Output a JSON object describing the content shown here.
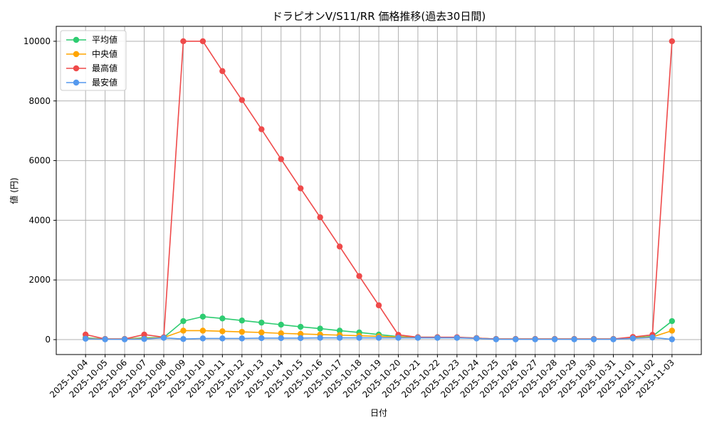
{
  "chart_data": {
    "type": "line",
    "title": "ドラピオンV/S11/RR 価格推移(過去30日間)",
    "x_label": "日付",
    "y_label": "値 (円)",
    "categories": [
      "2025-10-04",
      "2025-10-05",
      "2025-10-06",
      "2025-10-07",
      "2025-10-08",
      "2025-10-09",
      "2025-10-10",
      "2025-10-11",
      "2025-10-12",
      "2025-10-13",
      "2025-10-14",
      "2025-10-15",
      "2025-10-16",
      "2025-10-17",
      "2025-10-18",
      "2025-10-19",
      "2025-10-20",
      "2025-10-21",
      "2025-10-22",
      "2025-10-23",
      "2025-10-24",
      "2025-10-25",
      "2025-10-26",
      "2025-10-27",
      "2025-10-28",
      "2025-10-29",
      "2025-10-30",
      "2025-10-31",
      "2025-11-01",
      "2025-11-02",
      "2025-11-03"
    ],
    "series": [
      {
        "name": "平均値",
        "color": "#2ecc71",
        "values": [
          60,
          20,
          20,
          60,
          70,
          620,
          770,
          710,
          640,
          570,
          500,
          430,
          370,
          300,
          240,
          170,
          100,
          80,
          80,
          70,
          50,
          20,
          20,
          20,
          20,
          20,
          20,
          20,
          60,
          110,
          620
        ]
      },
      {
        "name": "中央値",
        "color": "#ffa500",
        "values": [
          40,
          20,
          20,
          40,
          70,
          300,
          300,
          280,
          260,
          240,
          210,
          190,
          170,
          150,
          130,
          110,
          90,
          70,
          70,
          70,
          50,
          20,
          20,
          20,
          20,
          20,
          20,
          20,
          50,
          90,
          300
        ]
      },
      {
        "name": "最高値",
        "color": "#ef4a4a",
        "values": [
          170,
          20,
          20,
          170,
          80,
          10000,
          10000,
          9000,
          8030,
          7050,
          6050,
          5070,
          4100,
          3120,
          2130,
          1150,
          160,
          80,
          80,
          80,
          50,
          20,
          20,
          20,
          20,
          20,
          20,
          20,
          90,
          160,
          10000
        ]
      },
      {
        "name": "最安値",
        "color": "#5599ee",
        "values": [
          30,
          10,
          10,
          20,
          60,
          20,
          40,
          40,
          40,
          50,
          50,
          50,
          60,
          60,
          60,
          60,
          60,
          60,
          60,
          60,
          40,
          10,
          10,
          10,
          10,
          10,
          10,
          10,
          40,
          70,
          10
        ]
      }
    ],
    "ylim": [
      -500,
      10500
    ],
    "yticks": [
      0,
      2000,
      4000,
      6000,
      8000,
      10000
    ],
    "grid": true,
    "legend": "upper-left"
  }
}
